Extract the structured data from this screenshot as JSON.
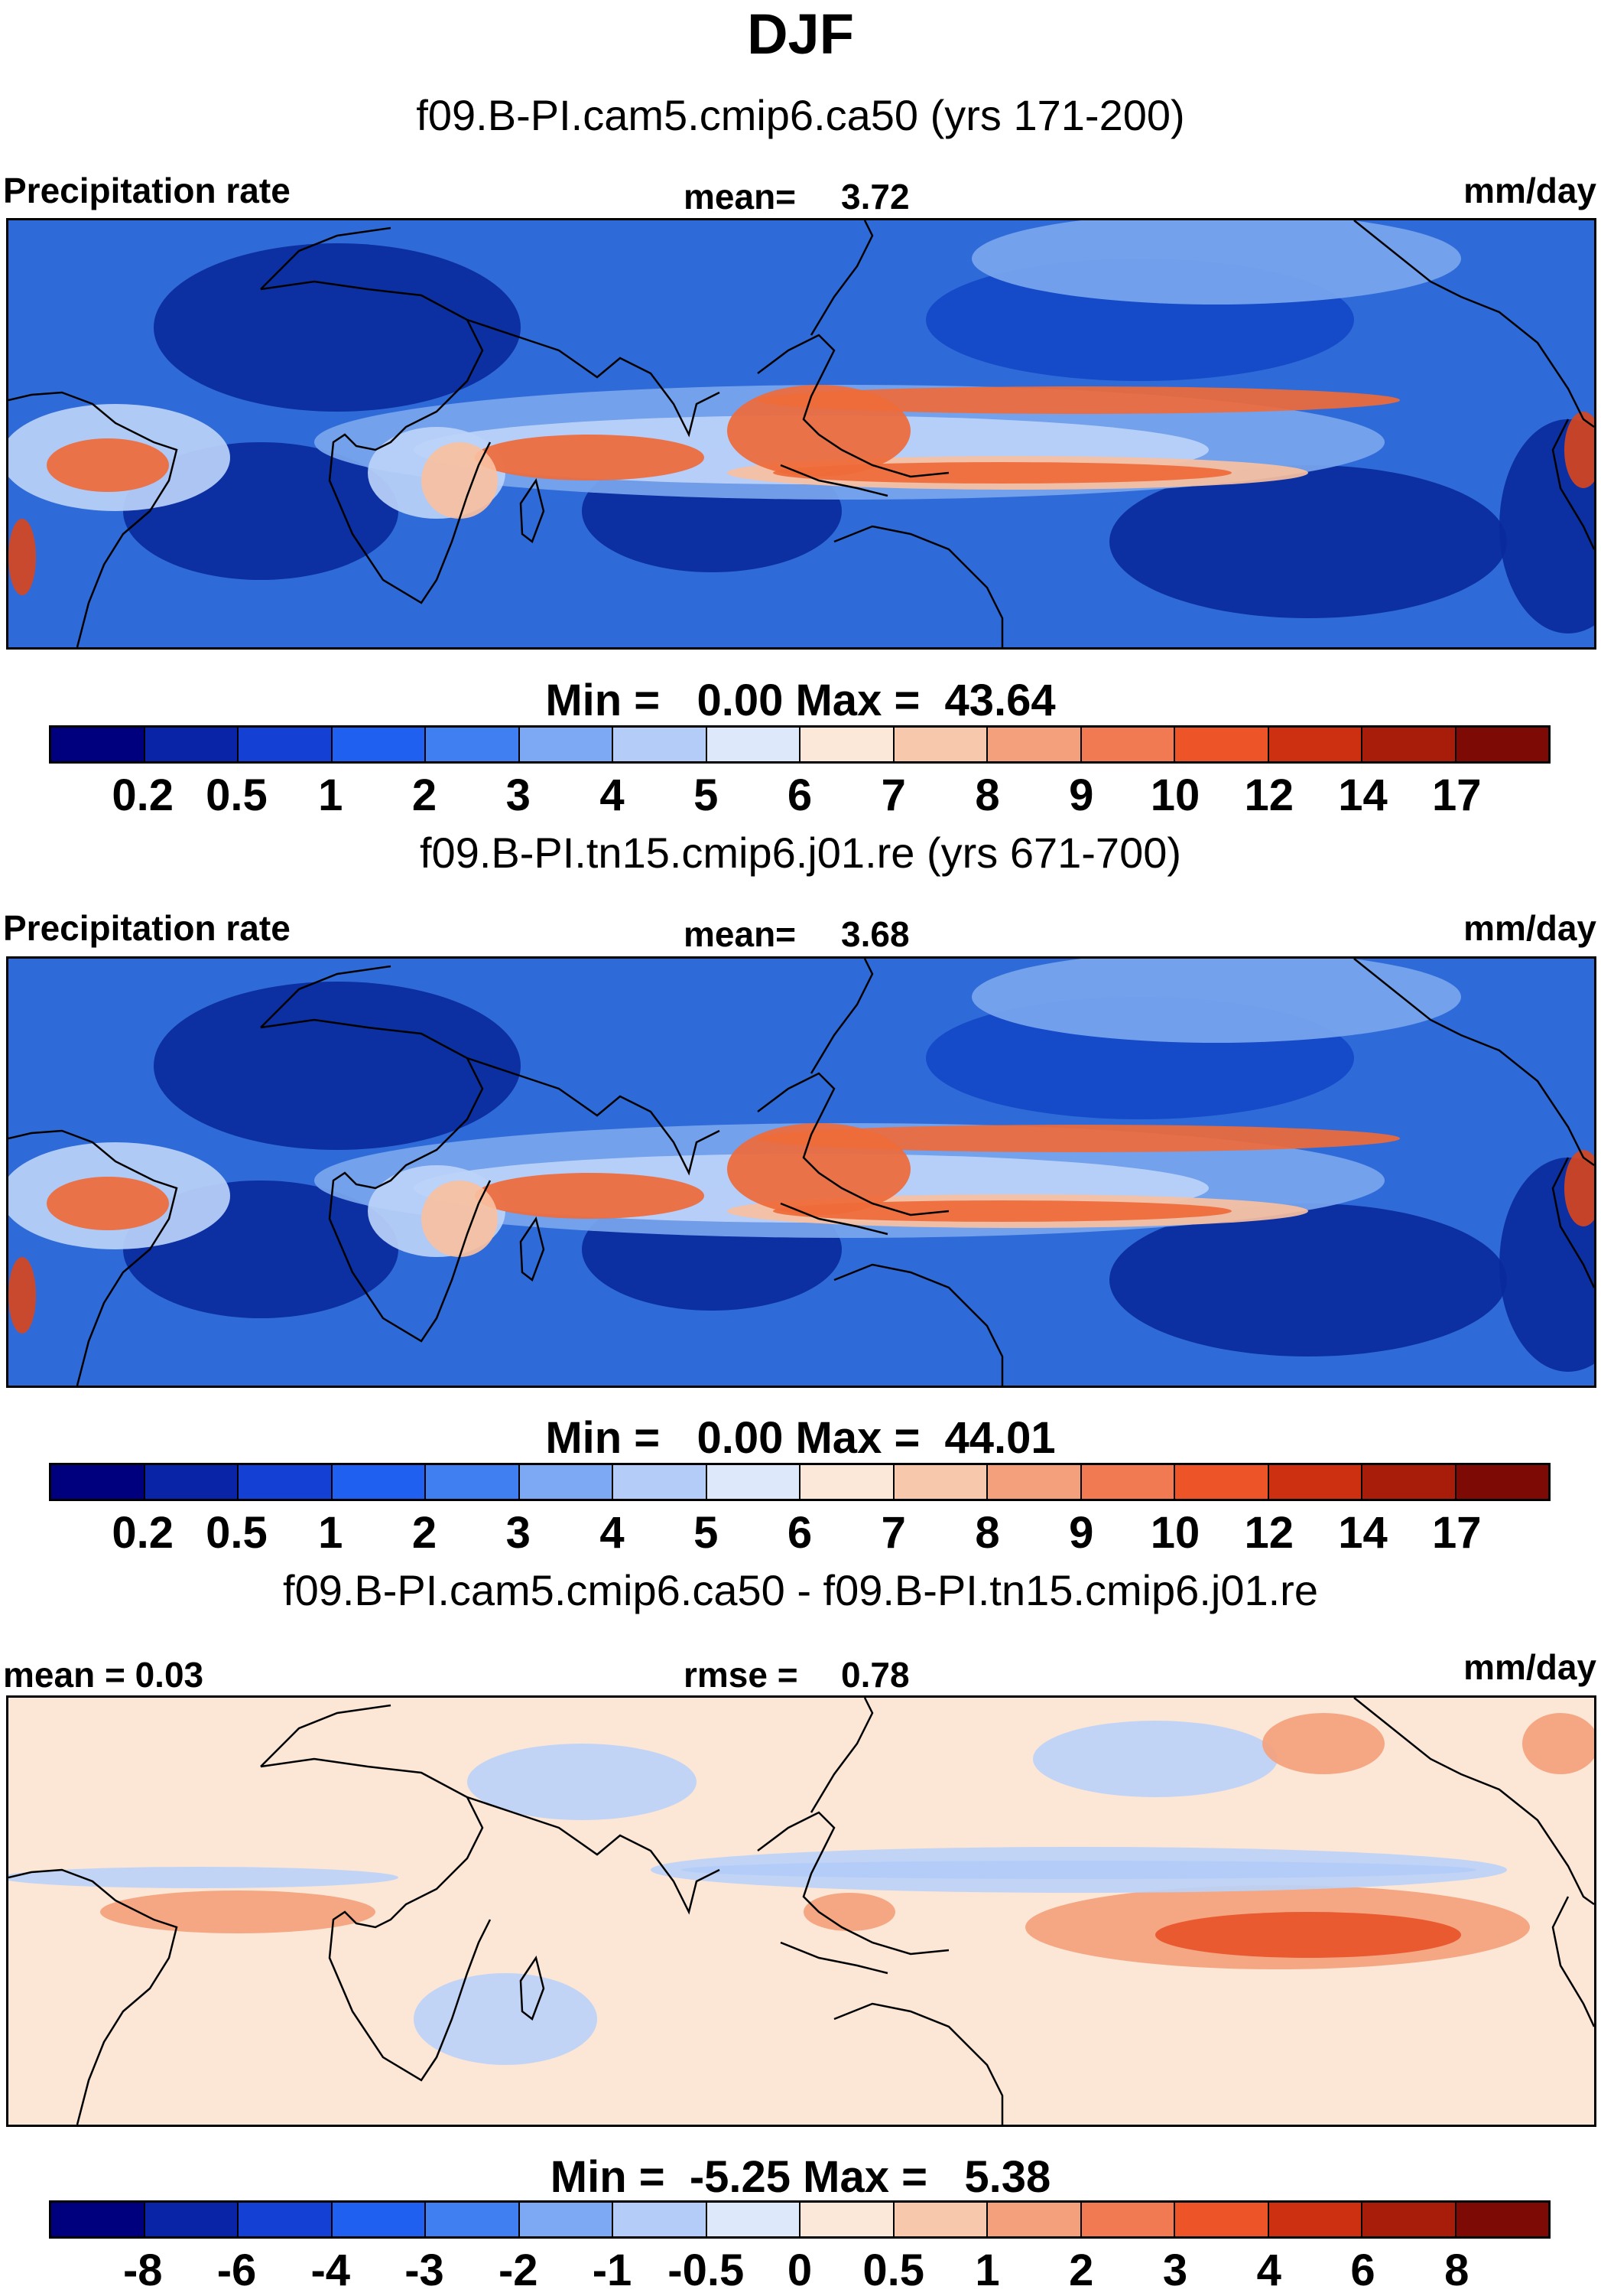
{
  "title": "DJF",
  "panels": [
    {
      "case_title": "f09.B-PI.cam5.cmip6.ca50 (yrs 171-200)",
      "left_label": "Precipitation rate",
      "stat_label": "mean=",
      "stat_value": "3.72",
      "units": "mm/day",
      "minmax": "Min =   0.00 Max =  43.64",
      "colorbar_ticks": [
        "0.2",
        "0.5",
        "1",
        "2",
        "3",
        "4",
        "5",
        "6",
        "7",
        "8",
        "9",
        "10",
        "12",
        "14",
        "17"
      ]
    },
    {
      "case_title": "f09.B-PI.tn15.cmip6.j01.re (yrs 671-700)",
      "left_label": "Precipitation rate",
      "stat_label": "mean=",
      "stat_value": "3.68",
      "units": "mm/day",
      "minmax": "Min =   0.00 Max =  44.01",
      "colorbar_ticks": [
        "0.2",
        "0.5",
        "1",
        "2",
        "3",
        "4",
        "5",
        "6",
        "7",
        "8",
        "9",
        "10",
        "12",
        "14",
        "17"
      ]
    },
    {
      "case_title": "f09.B-PI.cam5.cmip6.ca50 - f09.B-PI.tn15.cmip6.j01.re",
      "left_label": "mean =   0.03",
      "stat_label": "rmse =",
      "stat_value": "0.78",
      "units": "mm/day",
      "minmax": "Min =  -5.25 Max =   5.38",
      "colorbar_ticks": [
        "-8",
        "-6",
        "-4",
        "-3",
        "-2",
        "-1",
        "-0.5",
        "0",
        "0.5",
        "1",
        "2",
        "3",
        "4",
        "6",
        "8"
      ]
    }
  ],
  "colorbar_colors": [
    "#00007e",
    "#0a24a8",
    "#1540d4",
    "#2060f0",
    "#3f7ff2",
    "#7da8f4",
    "#b3cdf8",
    "#dde9fb",
    "#fce8d8",
    "#f8c8ac",
    "#f5a07c",
    "#f27a52",
    "#ed5428",
    "#cc3011",
    "#a81c0a",
    "#7e0a06"
  ],
  "map_colors": {
    "base_precip": "#2f6bd8",
    "dry": "#0a2a9c",
    "moderate": "#7aa6ee",
    "light": "#bcd3f8",
    "wet": "#ef6a3a",
    "very_wet": "#d6461e",
    "pale_wet": "#f8c0a0",
    "diff_base": "#fce6d6",
    "diff_neg": "#bcd3f8",
    "diff_neg_strong": "#3f7ff2",
    "diff_pos": "#f4a27c",
    "diff_pos_strong": "#e8542a",
    "coast": "#000000"
  }
}
